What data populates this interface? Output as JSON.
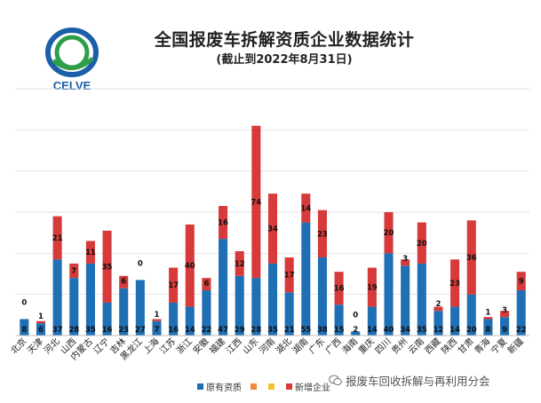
{
  "logo": {
    "text": "CELVE"
  },
  "chart_data": {
    "type": "bar",
    "title": "全国报废车拆解资质企业数据统计",
    "subtitle": "(截止到2022年8月31日)",
    "categories": [
      "北京",
      "天津",
      "河北",
      "山西",
      "内蒙古",
      "辽宁",
      "吉林",
      "黑龙江",
      "上海",
      "江苏",
      "浙江",
      "安徽",
      "福建",
      "江西",
      "山东",
      "河南",
      "湖北",
      "湖南",
      "广东",
      "广西",
      "海南",
      "重庆",
      "四川",
      "贵州",
      "云南",
      "西藏",
      "陕西",
      "甘肃",
      "青海",
      "宁夏",
      "新疆"
    ],
    "series": [
      {
        "name": "原有资质",
        "color": "#1F6FB5",
        "values": [
          8,
          6,
          37,
          28,
          35,
          16,
          23,
          27,
          7,
          16,
          14,
          22,
          47,
          29,
          28,
          35,
          21,
          55,
          38,
          15,
          2,
          14,
          40,
          34,
          35,
          12,
          14,
          20,
          8,
          9,
          22
        ]
      },
      {
        "name": "",
        "color": "#F0883E",
        "values": [
          0,
          0,
          0,
          0,
          0,
          0,
          0,
          0,
          0,
          0,
          0,
          0,
          0,
          0,
          0,
          0,
          0,
          0,
          0,
          0,
          0,
          0,
          0,
          0,
          0,
          0,
          0,
          0,
          0,
          0,
          0
        ]
      },
      {
        "name": "",
        "color": "#F2C230",
        "values": [
          0,
          0,
          0,
          0,
          0,
          0,
          0,
          0,
          0,
          0,
          0,
          0,
          0,
          0,
          0,
          0,
          0,
          0,
          0,
          0,
          0,
          0,
          0,
          0,
          0,
          0,
          0,
          0,
          0,
          0,
          0
        ]
      },
      {
        "name": "新增企业",
        "color": "#D63A3A",
        "values": [
          0,
          1,
          21,
          7,
          11,
          35,
          6,
          0,
          1,
          17,
          40,
          6,
          16,
          12,
          74,
          34,
          17,
          14,
          23,
          16,
          0,
          19,
          20,
          3,
          20,
          2,
          23,
          36,
          1,
          3,
          9
        ]
      }
    ],
    "ylim": [
      0,
      120
    ],
    "grid": true,
    "legend": "bottom"
  },
  "watermark": {
    "text": "报废车回收拆解与再利用分会"
  }
}
